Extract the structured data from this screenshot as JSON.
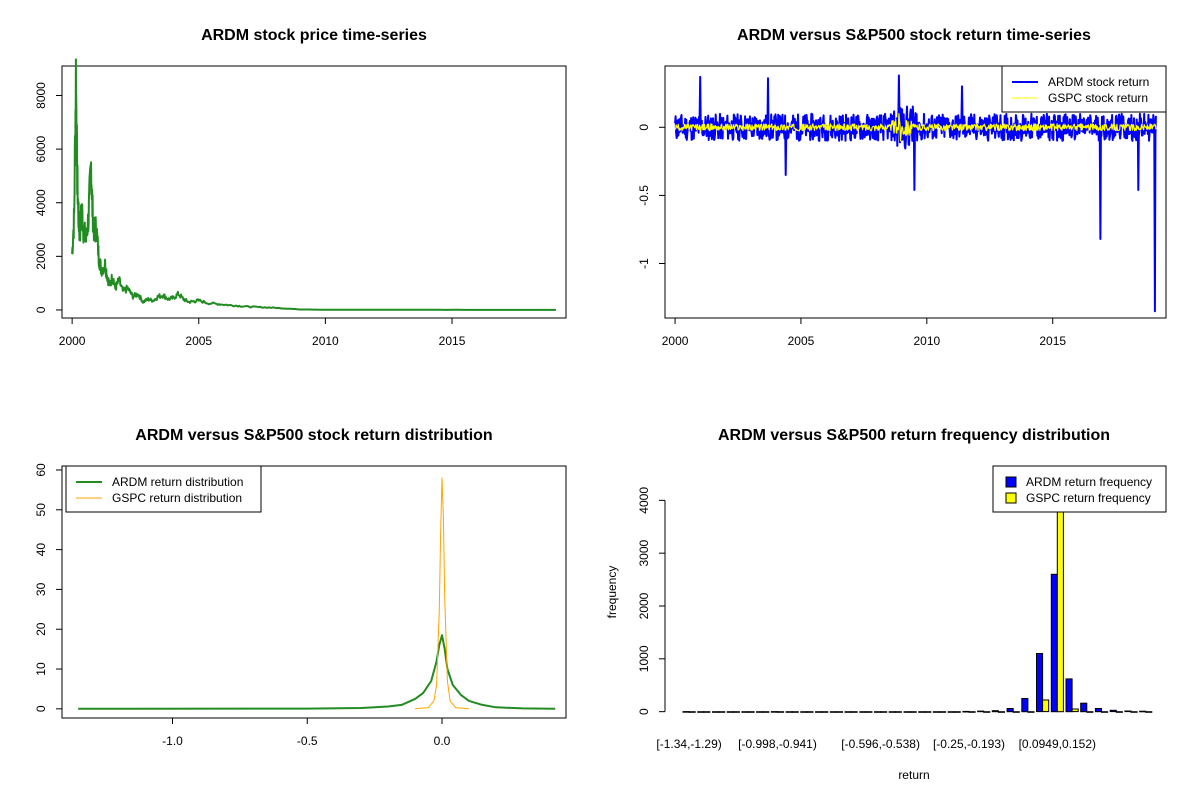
{
  "colors": {
    "green": "#228b22",
    "blue": "#0000ff",
    "yellow": "#ffff00",
    "orange": "#ffa500",
    "black": "#000000"
  },
  "chart_data": [
    {
      "id": "price",
      "type": "line",
      "title": "ARDM stock price time-series",
      "xlabel": "",
      "ylabel": "",
      "xlim": [
        1999.6,
        2019.5
      ],
      "ylim": [
        -300,
        9100
      ],
      "x_ticks": [
        2000,
        2005,
        2010,
        2015
      ],
      "y_ticks": [
        0,
        2000,
        4000,
        6000,
        8000
      ],
      "legend": null,
      "series": [
        {
          "color": "#228b22",
          "x": [
            2000.0,
            2000.08,
            2000.15,
            2000.2,
            2000.25,
            2000.3,
            2000.38,
            2000.45,
            2000.55,
            2000.65,
            2000.75,
            2000.8,
            2000.88,
            2000.95,
            2001.05,
            2001.15,
            2001.3,
            2001.4,
            2001.5,
            2001.6,
            2001.7,
            2001.85,
            2002.0,
            2002.2,
            2002.4,
            2002.6,
            2002.8,
            2003.0,
            2003.2,
            2003.4,
            2003.6,
            2003.8,
            2004.0,
            2004.2,
            2004.4,
            2004.6,
            2004.8,
            2005.0,
            2005.4,
            2005.8,
            2006.2,
            2006.6,
            2007.0,
            2007.5,
            2008.0,
            2008.5,
            2009.0,
            2010.0,
            2012.0,
            2014.0,
            2016.0,
            2018.0,
            2019.1
          ],
          "y": [
            2100,
            3500,
            8800,
            5000,
            3500,
            2800,
            3800,
            3000,
            2600,
            3500,
            5400,
            3800,
            2800,
            3100,
            2000,
            1500,
            1700,
            1200,
            900,
            1300,
            800,
            1100,
            700,
            800,
            500,
            600,
            300,
            400,
            350,
            500,
            550,
            400,
            450,
            600,
            400,
            300,
            320,
            350,
            250,
            220,
            180,
            150,
            120,
            100,
            80,
            50,
            20,
            10,
            5,
            5,
            3,
            2,
            2
          ]
        }
      ]
    },
    {
      "id": "returns",
      "type": "line",
      "title": "ARDM versus S&P500 stock return time-series",
      "xlabel": "",
      "ylabel": "",
      "xlim": [
        1999.6,
        2019.5
      ],
      "ylim": [
        -1.4,
        0.45
      ],
      "x_ticks": [
        2000,
        2005,
        2010,
        2015
      ],
      "y_ticks": [
        -1.0,
        -0.5,
        0.0
      ],
      "legend": {
        "placement": "top-right",
        "entries": [
          {
            "label": "ARDM stock return",
            "color": "#0000ff"
          },
          {
            "label": "GSPC stock return",
            "color": "#ffff00"
          }
        ]
      },
      "series": [
        {
          "name": "ARDM stock return",
          "color": "#0000ff",
          "x_start": 2000.0,
          "x_end": 2019.1,
          "typical_amplitude": 0.1,
          "spikes": [
            [
              2001.0,
              0.37
            ],
            [
              2003.7,
              0.36
            ],
            [
              2004.4,
              -0.35
            ],
            [
              2008.9,
              0.38
            ],
            [
              2009.5,
              -0.46
            ],
            [
              2011.4,
              0.3
            ],
            [
              2016.9,
              -0.82
            ],
            [
              2018.4,
              -0.46
            ],
            [
              2019.05,
              -1.35
            ]
          ]
        },
        {
          "name": "GSPC stock return",
          "color": "#ffff00",
          "x_start": 2000.0,
          "x_end": 2019.1,
          "typical_amplitude": 0.025,
          "spikes": [
            [
              2008.9,
              0.1
            ],
            [
              2008.95,
              -0.1
            ]
          ]
        }
      ]
    },
    {
      "id": "density",
      "type": "line",
      "title": "ARDM versus S&P500 stock return distribution",
      "xlabel": "",
      "ylabel": "",
      "xlim": [
        -1.41,
        0.46
      ],
      "ylim": [
        -2.3,
        61
      ],
      "x_ticks": [
        -1.0,
        -0.5,
        0.0
      ],
      "x_tick_labels": [
        "-1.0",
        "-0.5",
        "0.0"
      ],
      "y_ticks": [
        0,
        10,
        20,
        30,
        40,
        50,
        60
      ],
      "legend": {
        "placement": "top-left",
        "entries": [
          {
            "label": "ARDM return distribution",
            "color": "#228b22"
          },
          {
            "label": "GSPC return distribution",
            "color": "#ffa500"
          }
        ]
      },
      "series": [
        {
          "name": "ARDM return distribution",
          "color": "#228b22",
          "x": [
            -1.35,
            -0.5,
            -0.3,
            -0.2,
            -0.15,
            -0.1,
            -0.07,
            -0.04,
            -0.02,
            -0.01,
            0.0,
            0.01,
            0.02,
            0.04,
            0.07,
            0.1,
            0.15,
            0.2,
            0.3,
            0.42
          ],
          "y": [
            0,
            0.05,
            0.2,
            0.6,
            1.0,
            2.5,
            4.0,
            7.0,
            12.0,
            16.0,
            18.5,
            15.0,
            10.0,
            6.0,
            3.5,
            2.0,
            1.0,
            0.4,
            0.1,
            0
          ]
        },
        {
          "name": "GSPC return distribution",
          "color": "#ffa500",
          "x": [
            -0.1,
            -0.05,
            -0.03,
            -0.02,
            -0.01,
            -0.005,
            0.0,
            0.005,
            0.01,
            0.02,
            0.03,
            0.05,
            0.1
          ],
          "y": [
            0,
            0.3,
            2.0,
            6.0,
            25.0,
            45.0,
            58.0,
            48.0,
            28.0,
            7.0,
            2.0,
            0.3,
            0
          ]
        }
      ]
    },
    {
      "id": "histogram",
      "type": "bar",
      "title": "ARDM versus S&P500 return frequency distribution",
      "xlabel": "return",
      "ylabel": "frequency",
      "ylim": [
        -120,
        4650
      ],
      "y_ticks": [
        0,
        1000,
        2000,
        3000,
        4000
      ],
      "tick_labels": [
        "[-1.34,-1.29)",
        "[-0.998,-0.941)",
        "[-0.596,-0.538)",
        "[-0.25,-0.193)",
        "[0.0949,0.152)"
      ],
      "tick_label_bins": [
        0,
        6,
        13,
        19,
        25
      ],
      "legend": {
        "placement": "top-right",
        "entries": [
          {
            "label": "ARDM return frequency",
            "color": "#0000ff"
          },
          {
            "label": "GSPC return frequency",
            "color": "#ffff00"
          }
        ]
      },
      "series": [
        {
          "name": "ARDM return frequency",
          "color": "#0000ff",
          "values": [
            1,
            0,
            0,
            0,
            0,
            0,
            1,
            0,
            0,
            0,
            0,
            0,
            0,
            0,
            0,
            0,
            0,
            0,
            0,
            5,
            10,
            18,
            60,
            250,
            1100,
            2600,
            620,
            160,
            60,
            25,
            12,
            8
          ]
        },
        {
          "name": "GSPC return frequency",
          "color": "#ffff00",
          "values": [
            0,
            0,
            0,
            0,
            0,
            0,
            0,
            0,
            0,
            0,
            0,
            0,
            0,
            0,
            0,
            0,
            0,
            0,
            0,
            0,
            0,
            0,
            0,
            0,
            220,
            4700,
            50,
            0,
            0,
            0,
            0,
            0
          ]
        }
      ]
    }
  ]
}
